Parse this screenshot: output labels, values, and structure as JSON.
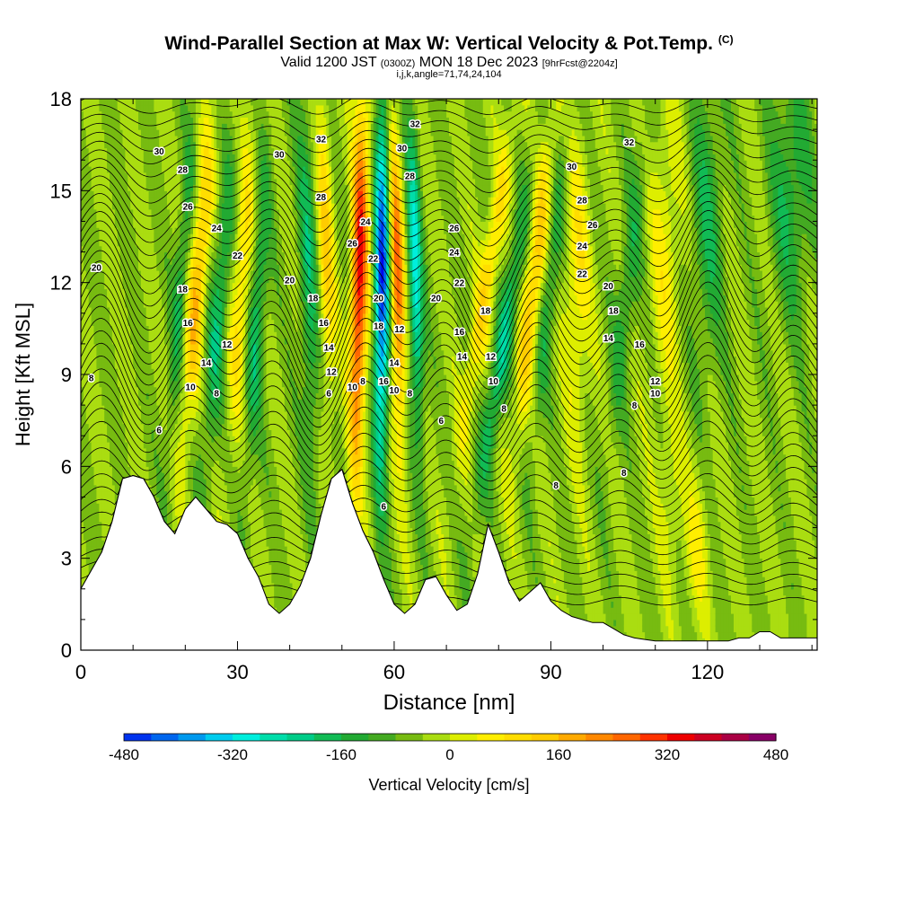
{
  "header": {
    "title": "Wind-Parallel Section at Max W: Vertical Velocity & Pot.Temp.",
    "copyright": "(C)",
    "valid_prefix": "Valid 1200 JST",
    "valid_zulu": "(0300Z)",
    "valid_date": "MON 18 Dec 2023",
    "forecast": "[9hrFcst@2204z]",
    "indices": "i,j,k,angle=71,74,24,104"
  },
  "chart_data": {
    "type": "heatmap",
    "xlabel": "Distance [nm]",
    "ylabel": "Height [Kft MSL]",
    "xlim": [
      0,
      141
    ],
    "ylim": [
      0,
      18
    ],
    "x_ticks": [
      0,
      30,
      60,
      90,
      120
    ],
    "y_ticks": [
      0,
      3,
      6,
      9,
      12,
      15,
      18
    ],
    "colorbar": {
      "label": "Vertical Velocity [cm/s]",
      "min": -480,
      "max": 480,
      "step": 40,
      "tick_labels": [
        "-480",
        "-320",
        "-160",
        "0",
        "160",
        "320",
        "480"
      ],
      "colors": [
        "#0000ee",
        "#0033ee",
        "#0066ee",
        "#0099ee",
        "#00ccee",
        "#00eedd",
        "#00ddaa",
        "#00cc88",
        "#11bb55",
        "#22aa33",
        "#44aa22",
        "#77bb11",
        "#aadd11",
        "#ddee00",
        "#ffee00",
        "#ffdd00",
        "#ffcc00",
        "#ffaa00",
        "#ff8800",
        "#ff6600",
        "#ff3300",
        "#ee0000",
        "#cc0022",
        "#aa0044",
        "#880066",
        "#660088"
      ]
    },
    "terrain_profile": {
      "x": [
        0,
        2,
        4,
        6,
        8,
        10,
        12,
        14,
        16,
        18,
        20,
        22,
        24,
        26,
        28,
        30,
        32,
        34,
        36,
        38,
        40,
        42,
        44,
        46,
        48,
        50,
        52,
        54,
        56,
        58,
        60,
        62,
        64,
        66,
        68,
        70,
        72,
        74,
        76,
        78,
        80,
        82,
        84,
        86,
        88,
        90,
        92,
        94,
        96,
        98,
        100,
        102,
        104,
        106,
        108,
        110,
        112,
        114,
        116,
        118,
        120,
        122,
        124,
        126,
        128,
        130,
        132,
        134,
        136,
        138,
        141
      ],
      "y": [
        2.0,
        2.6,
        3.2,
        4.2,
        5.6,
        5.7,
        5.6,
        5.0,
        4.2,
        3.8,
        4.6,
        5.0,
        4.6,
        4.2,
        4.1,
        3.8,
        3.0,
        2.4,
        1.5,
        1.2,
        1.5,
        2.1,
        3.0,
        4.4,
        5.6,
        5.9,
        4.8,
        3.9,
        3.2,
        2.3,
        1.5,
        1.2,
        1.5,
        2.3,
        2.4,
        1.8,
        1.3,
        1.5,
        2.5,
        4.1,
        3.2,
        2.2,
        1.6,
        1.9,
        2.2,
        1.6,
        1.3,
        1.1,
        1.0,
        0.9,
        0.9,
        0.7,
        0.5,
        0.4,
        0.35,
        0.3,
        0.3,
        0.3,
        0.3,
        0.3,
        0.3,
        0.3,
        0.3,
        0.4,
        0.4,
        0.6,
        0.6,
        0.4,
        0.4,
        0.4,
        0.4
      ]
    },
    "contour_levels": [
      "6",
      "8",
      "10",
      "12",
      "14",
      "16",
      "18",
      "20",
      "22",
      "24",
      "26",
      "28",
      "30",
      "32"
    ],
    "contour_labels": [
      {
        "text": "30",
        "x": 15,
        "y": 16.3
      },
      {
        "text": "28",
        "x": 19.5,
        "y": 15.7
      },
      {
        "text": "26",
        "x": 20.5,
        "y": 14.5
      },
      {
        "text": "24",
        "x": 26,
        "y": 13.8
      },
      {
        "text": "22",
        "x": 30,
        "y": 12.9
      },
      {
        "text": "20",
        "x": 3,
        "y": 12.5
      },
      {
        "text": "18",
        "x": 19.5,
        "y": 11.8
      },
      {
        "text": "16",
        "x": 20.5,
        "y": 10.7
      },
      {
        "text": "14",
        "x": 24,
        "y": 9.4
      },
      {
        "text": "12",
        "x": 28,
        "y": 10.0
      },
      {
        "text": "10",
        "x": 21,
        "y": 8.6
      },
      {
        "text": "8",
        "x": 2,
        "y": 8.9
      },
      {
        "text": "8",
        "x": 26,
        "y": 8.4
      },
      {
        "text": "6",
        "x": 15,
        "y": 7.2
      },
      {
        "text": "30",
        "x": 38,
        "y": 16.2
      },
      {
        "text": "32",
        "x": 46,
        "y": 16.7
      },
      {
        "text": "28",
        "x": 46,
        "y": 14.8
      },
      {
        "text": "20",
        "x": 40,
        "y": 12.1
      },
      {
        "text": "18",
        "x": 44.5,
        "y": 11.5
      },
      {
        "text": "16",
        "x": 46.5,
        "y": 10.7
      },
      {
        "text": "14",
        "x": 47.5,
        "y": 9.9
      },
      {
        "text": "12",
        "x": 48,
        "y": 9.1
      },
      {
        "text": "10",
        "x": 52,
        "y": 8.6
      },
      {
        "text": "8",
        "x": 54,
        "y": 8.8
      },
      {
        "text": "6",
        "x": 47.5,
        "y": 8.4
      },
      {
        "text": "26",
        "x": 52,
        "y": 13.3
      },
      {
        "text": "24",
        "x": 54.5,
        "y": 14.0
      },
      {
        "text": "22",
        "x": 56,
        "y": 12.8
      },
      {
        "text": "20",
        "x": 57,
        "y": 11.5
      },
      {
        "text": "18",
        "x": 57,
        "y": 10.6
      },
      {
        "text": "16",
        "x": 58,
        "y": 8.8
      },
      {
        "text": "14",
        "x": 60,
        "y": 9.4
      },
      {
        "text": "12",
        "x": 61,
        "y": 10.5
      },
      {
        "text": "10",
        "x": 60,
        "y": 8.5
      },
      {
        "text": "8",
        "x": 63,
        "y": 8.4
      },
      {
        "text": "6",
        "x": 58,
        "y": 4.7
      },
      {
        "text": "32",
        "x": 64,
        "y": 17.2
      },
      {
        "text": "30",
        "x": 61.5,
        "y": 16.4
      },
      {
        "text": "28",
        "x": 63,
        "y": 15.5
      },
      {
        "text": "26",
        "x": 71.5,
        "y": 13.8
      },
      {
        "text": "24",
        "x": 71.5,
        "y": 13.0
      },
      {
        "text": "22",
        "x": 72.5,
        "y": 12.0
      },
      {
        "text": "20",
        "x": 68,
        "y": 11.5
      },
      {
        "text": "18",
        "x": 77.5,
        "y": 11.1
      },
      {
        "text": "16",
        "x": 72.5,
        "y": 10.4
      },
      {
        "text": "14",
        "x": 73,
        "y": 9.6
      },
      {
        "text": "12",
        "x": 78.5,
        "y": 9.6
      },
      {
        "text": "10",
        "x": 79,
        "y": 8.8
      },
      {
        "text": "8",
        "x": 81,
        "y": 7.9
      },
      {
        "text": "6",
        "x": 69,
        "y": 7.5
      },
      {
        "text": "8",
        "x": 91,
        "y": 5.4
      },
      {
        "text": "32",
        "x": 105,
        "y": 16.6
      },
      {
        "text": "30",
        "x": 94,
        "y": 15.8
      },
      {
        "text": "28",
        "x": 96,
        "y": 14.7
      },
      {
        "text": "26",
        "x": 98,
        "y": 13.9
      },
      {
        "text": "24",
        "x": 96,
        "y": 13.2
      },
      {
        "text": "22",
        "x": 96,
        "y": 12.3
      },
      {
        "text": "20",
        "x": 101,
        "y": 11.9
      },
      {
        "text": "18",
        "x": 102,
        "y": 11.1
      },
      {
        "text": "16",
        "x": 107,
        "y": 10.0
      },
      {
        "text": "14",
        "x": 101,
        "y": 10.2
      },
      {
        "text": "12",
        "x": 110,
        "y": 8.8
      },
      {
        "text": "10",
        "x": 110,
        "y": 8.4
      },
      {
        "text": "8",
        "x": 106,
        "y": 8.0
      },
      {
        "text": "8",
        "x": 104,
        "y": 5.8
      }
    ]
  }
}
